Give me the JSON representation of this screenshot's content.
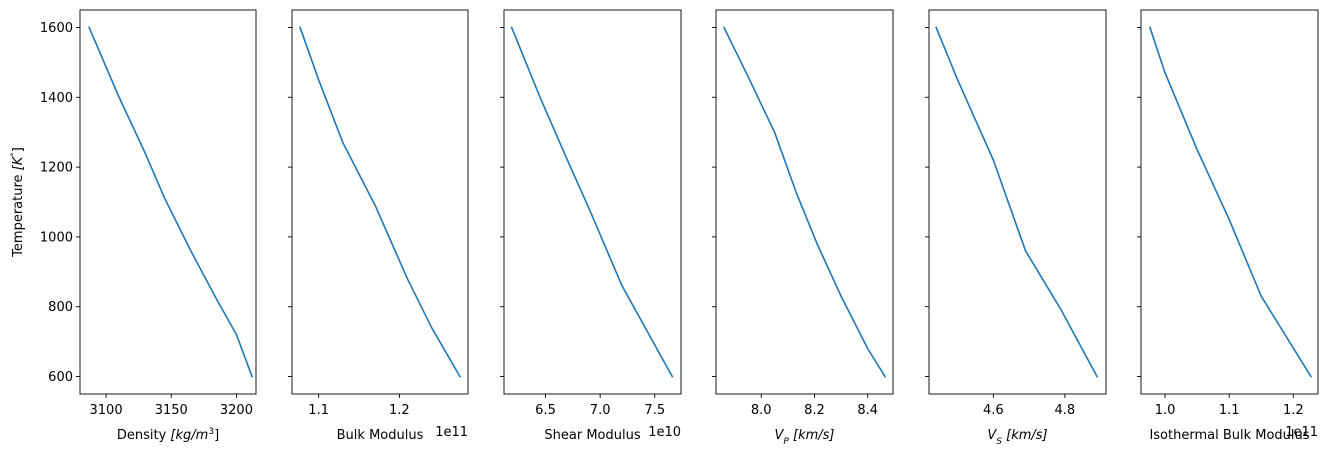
{
  "chart_data": [
    {
      "type": "line",
      "xlabel": "Density [kg/m³]",
      "xlabel_parts": {
        "text": "Density ",
        "math": "[kg/m",
        "sup": "3",
        "close": "]"
      },
      "ylabel": "Temperature [K°]",
      "ylabel_parts": {
        "text": "Temperature ",
        "math": "[K",
        "sup": "°",
        "close": "]"
      },
      "xlim": [
        3080,
        3215
      ],
      "ylim": [
        550,
        1650
      ],
      "xticks": [
        3100,
        3150,
        3200
      ],
      "xtick_labels": [
        "3100",
        "3150",
        "3200"
      ],
      "yticks": [
        600,
        800,
        1000,
        1200,
        1400,
        1600
      ],
      "ytick_labels": [
        "600",
        "800",
        "1000",
        "1200",
        "1400",
        "1600"
      ],
      "offset": "",
      "color": "#1f77b4",
      "series": [
        {
          "x": [
            3087,
            3110,
            3130,
            3145,
            3165,
            3185,
            3200,
            3212
          ],
          "y": [
            1600,
            1400,
            1240,
            1110,
            960,
            820,
            720,
            600
          ]
        }
      ]
    },
    {
      "type": "line",
      "xlabel": "Bulk Modulus",
      "xlim": [
        106700000000.0,
        128500000000.0
      ],
      "ylim": [
        550,
        1650
      ],
      "xticks": [
        110000000000.0,
        120000000000.0
      ],
      "xtick_labels": [
        "1.1",
        "1.2"
      ],
      "yticks": [
        600,
        800,
        1000,
        1200,
        1400,
        1600
      ],
      "offset": "1e11",
      "color": "#1f77b4",
      "series": [
        {
          "x": [
            107700000000.0,
            110000000000.0,
            113000000000.0,
            117000000000.0,
            121000000000.0,
            124000000000.0,
            127500000000.0
          ],
          "y": [
            1600,
            1450,
            1270,
            1090,
            880,
            740,
            600
          ]
        }
      ]
    },
    {
      "type": "line",
      "xlabel": "Shear Modulus",
      "xlim": [
        61200000000.0,
        77400000000.0
      ],
      "ylim": [
        550,
        1650
      ],
      "xticks": [
        65000000000.0,
        70000000000.0,
        75000000000.0
      ],
      "xtick_labels": [
        "6.5",
        "7.0",
        "7.5"
      ],
      "yticks": [
        600,
        800,
        1000,
        1200,
        1400,
        1600
      ],
      "offset": "1e10",
      "color": "#1f77b4",
      "series": [
        {
          "x": [
            61900000000.0,
            64500000000.0,
            67000000000.0,
            69000000000.0,
            72000000000.0,
            76600000000.0
          ],
          "y": [
            1600,
            1400,
            1220,
            1080,
            860,
            600
          ]
        }
      ]
    },
    {
      "type": "line",
      "xlabel": "VP [km/s]",
      "xlabel_parts": {
        "math": "V",
        "sub": "P",
        "close": " [km/s]"
      },
      "xlim": [
        7.83,
        8.495
      ],
      "ylim": [
        550,
        1650
      ],
      "xticks": [
        8.0,
        8.2,
        8.4
      ],
      "xtick_labels": [
        "8.0",
        "8.2",
        "8.4"
      ],
      "yticks": [
        600,
        800,
        1000,
        1200,
        1400,
        1600
      ],
      "offset": "",
      "color": "#1f77b4",
      "series": [
        {
          "x": [
            7.86,
            7.95,
            8.05,
            8.13,
            8.21,
            8.3,
            8.4,
            8.465
          ],
          "y": [
            1600,
            1460,
            1300,
            1130,
            980,
            830,
            680,
            600
          ]
        }
      ]
    },
    {
      "type": "line",
      "xlabel": "VS [km/s]",
      "xlabel_parts": {
        "math": "V",
        "sub": "S",
        "close": " [km/s]"
      },
      "xlim": [
        4.42,
        4.915
      ],
      "ylim": [
        550,
        1650
      ],
      "xticks": [
        4.6,
        4.8
      ],
      "xtick_labels": [
        "4.6",
        "4.8"
      ],
      "yticks": [
        600,
        800,
        1000,
        1200,
        1400,
        1600
      ],
      "offset": "",
      "color": "#1f77b4",
      "series": [
        {
          "x": [
            4.44,
            4.5,
            4.6,
            4.69,
            4.79,
            4.89
          ],
          "y": [
            1600,
            1450,
            1220,
            960,
            790,
            600
          ]
        }
      ]
    },
    {
      "type": "line",
      "xlabel": "Isothermal Bulk Modulus",
      "xlim": [
        96250000000.0,
        123850000000.0
      ],
      "ylim": [
        550,
        1650
      ],
      "xticks": [
        100000000000.0,
        110000000000.0,
        120000000000.0
      ],
      "xtick_labels": [
        "1.0",
        "1.1",
        "1.2"
      ],
      "yticks": [
        600,
        800,
        1000,
        1200,
        1400,
        1600
      ],
      "offset": "1e11",
      "color": "#1f77b4",
      "series": [
        {
          "x": [
            97650000000.0,
            100000000000.0,
            105000000000.0,
            110000000000.0,
            115000000000.0,
            122750000000.0
          ],
          "y": [
            1600,
            1470,
            1250,
            1050,
            830,
            600
          ]
        }
      ]
    }
  ]
}
